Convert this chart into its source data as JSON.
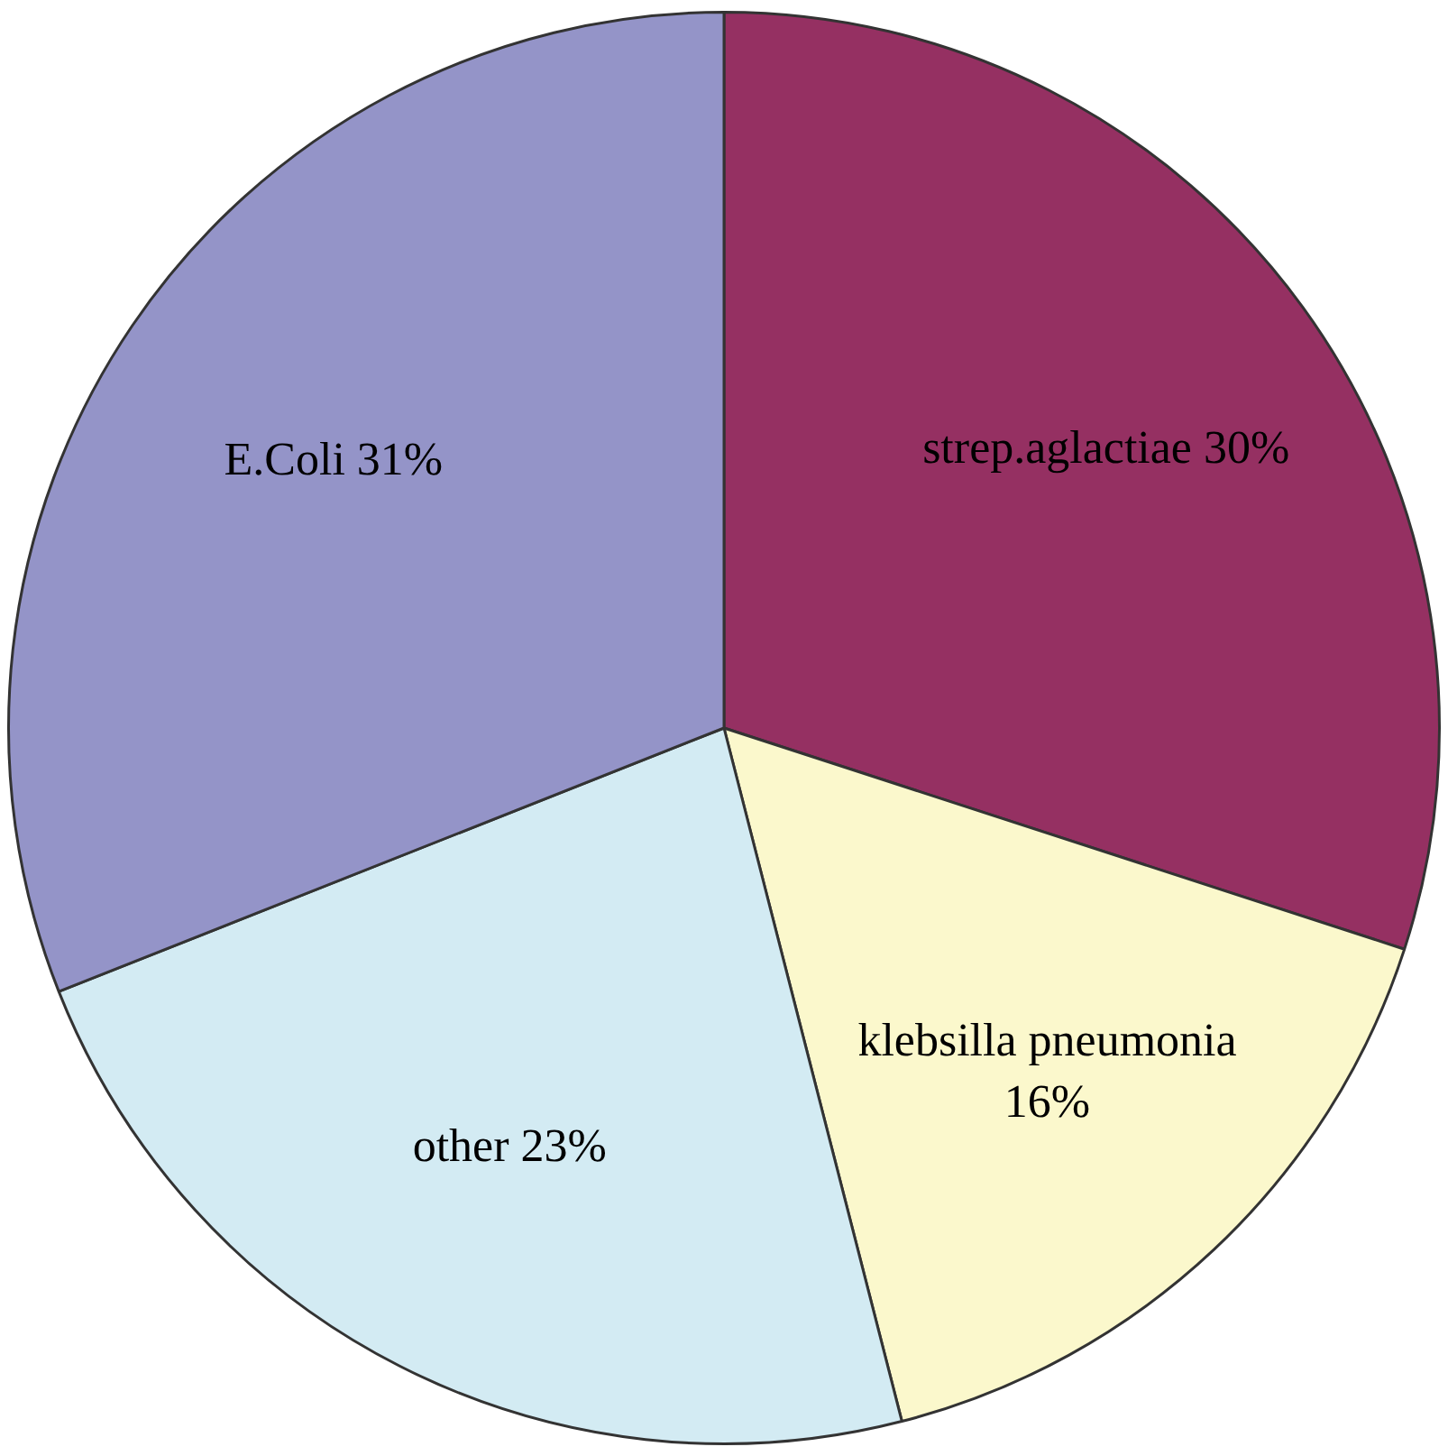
{
  "chart_data": {
    "type": "pie",
    "categories": [
      "strep.aglactiae",
      "klebsilla pneumonia",
      "other",
      "E.Coli"
    ],
    "values": [
      30,
      16,
      23,
      31
    ],
    "value_labels": [
      "30%",
      "16%",
      "23%",
      "31%"
    ],
    "colors": [
      "#953062",
      "#fbf8cc",
      "#d3ebf3",
      "#9494c8"
    ],
    "legend": false
  }
}
